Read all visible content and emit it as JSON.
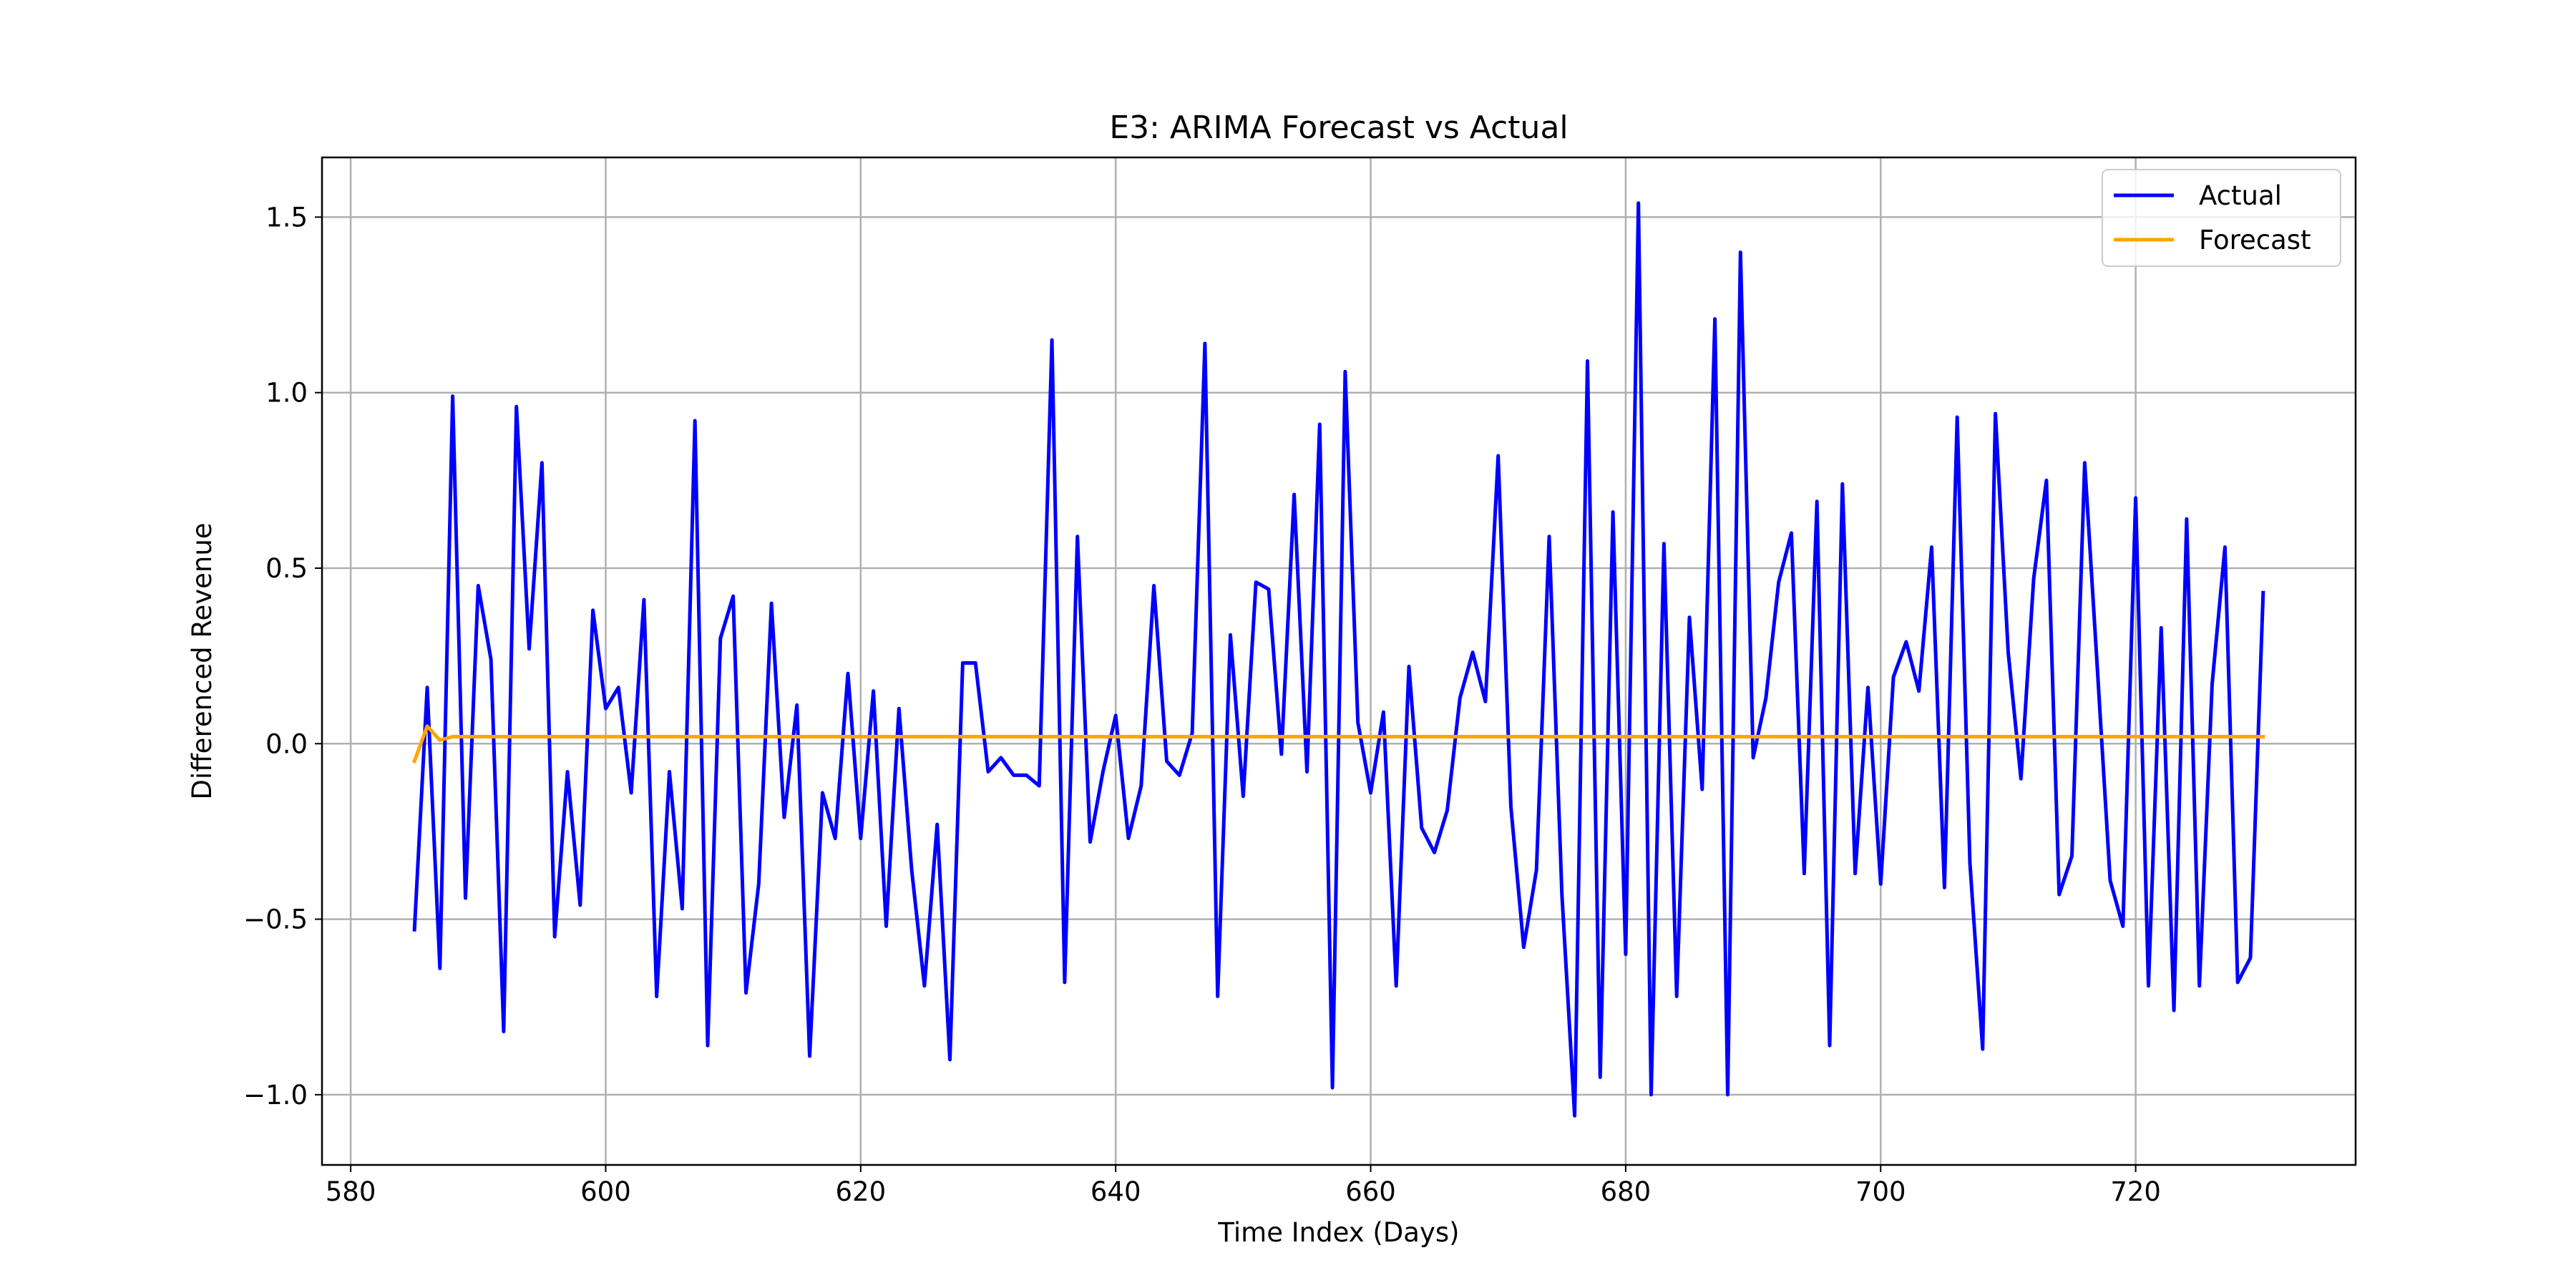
{
  "chart_data": {
    "type": "line",
    "title": "E3: ARIMA Forecast vs Actual",
    "xlabel": "Time Index (Days)",
    "ylabel": "Differenced Revenue",
    "xlim": [
      577.75,
      737.25
    ],
    "ylim": [
      -1.2,
      1.67
    ],
    "xticks": [
      580,
      600,
      620,
      640,
      660,
      680,
      700,
      720
    ],
    "xtick_labels": [
      "580",
      "600",
      "620",
      "640",
      "660",
      "680",
      "700",
      "720"
    ],
    "yticks": [
      -1.0,
      -0.5,
      0.0,
      0.5,
      1.0,
      1.5
    ],
    "ytick_labels": [
      "−1.0",
      "−0.5",
      "0.0",
      "0.5",
      "1.0",
      "1.5"
    ],
    "grid": true,
    "legend_position": "top-right",
    "series": [
      {
        "name": "Actual",
        "color": "#0000ff",
        "x": [
          585,
          586,
          587,
          588,
          589,
          590,
          591,
          592,
          593,
          594,
          595,
          596,
          597,
          598,
          599,
          600,
          601,
          602,
          603,
          604,
          605,
          606,
          607,
          608,
          609,
          610,
          611,
          612,
          613,
          614,
          615,
          616,
          617,
          618,
          619,
          620,
          621,
          622,
          623,
          624,
          625,
          626,
          627,
          628,
          629,
          630,
          631,
          632,
          633,
          634,
          635,
          636,
          637,
          638,
          639,
          640,
          641,
          642,
          643,
          644,
          645,
          646,
          647,
          648,
          649,
          650,
          651,
          652,
          653,
          654,
          655,
          656,
          657,
          658,
          659,
          660,
          661,
          662,
          663,
          664,
          665,
          666,
          667,
          668,
          669,
          670,
          671,
          672,
          673,
          674,
          675,
          676,
          677,
          678,
          679,
          680,
          681,
          682,
          683,
          684,
          685,
          686,
          687,
          688,
          689,
          690,
          691,
          692,
          693,
          694,
          695,
          696,
          697,
          698,
          699,
          700,
          701,
          702,
          703,
          704,
          705,
          706,
          707,
          708,
          709,
          710,
          711,
          712,
          713,
          714,
          715,
          716,
          717,
          718,
          719,
          720,
          721,
          722,
          723,
          724,
          725,
          726,
          727,
          728,
          729,
          730
        ],
        "y": [
          -0.53,
          0.16,
          -0.64,
          0.99,
          -0.44,
          0.45,
          0.24,
          -0.82,
          0.96,
          0.27,
          0.8,
          -0.55,
          -0.08,
          -0.46,
          0.38,
          0.1,
          0.16,
          -0.14,
          0.41,
          -0.72,
          -0.08,
          -0.47,
          0.92,
          -0.86,
          0.3,
          0.42,
          -0.71,
          -0.4,
          0.4,
          -0.21,
          0.11,
          -0.89,
          -0.14,
          -0.27,
          0.2,
          -0.27,
          0.15,
          -0.52,
          0.1,
          -0.36,
          -0.69,
          -0.23,
          -0.9,
          0.23,
          0.23,
          -0.08,
          -0.04,
          -0.09,
          -0.09,
          -0.12,
          1.15,
          -0.68,
          0.59,
          -0.28,
          -0.08,
          0.08,
          -0.27,
          -0.12,
          0.45,
          -0.05,
          -0.09,
          0.03,
          1.14,
          -0.72,
          0.31,
          -0.15,
          0.46,
          0.44,
          -0.03,
          0.71,
          -0.08,
          0.91,
          -0.98,
          1.06,
          0.06,
          -0.14,
          0.09,
          -0.69,
          0.22,
          -0.24,
          -0.31,
          -0.19,
          0.13,
          0.26,
          0.12,
          0.82,
          -0.18,
          -0.58,
          -0.36,
          0.59,
          -0.43,
          -1.06,
          1.09,
          -0.95,
          0.66,
          -0.6,
          1.54,
          -1.0,
          0.57,
          -0.72,
          0.36,
          -0.13,
          1.21,
          -1.0,
          1.4,
          -0.04,
          0.13,
          0.46,
          0.6,
          -0.37,
          0.69,
          -0.86,
          0.74,
          -0.37,
          0.16,
          -0.4,
          0.19,
          0.29,
          0.15,
          0.56,
          -0.41,
          0.93,
          -0.34,
          -0.87,
          0.94,
          0.26,
          -0.1,
          0.47,
          0.75,
          -0.43,
          -0.32,
          0.8,
          0.21,
          -0.39,
          -0.52,
          0.7,
          -0.69,
          0.33,
          -0.76,
          0.64,
          -0.69,
          0.17,
          0.56,
          -0.68,
          -0.61,
          0.43
        ]
      },
      {
        "name": "Forecast",
        "color": "#ffa500",
        "x": [
          585,
          586,
          587,
          588,
          730
        ],
        "y": [
          -0.05,
          0.05,
          0.01,
          0.02,
          0.02
        ]
      }
    ]
  },
  "colors": {
    "grid": "#b0b0b0",
    "frame": "#000000",
    "background": "#ffffff"
  }
}
